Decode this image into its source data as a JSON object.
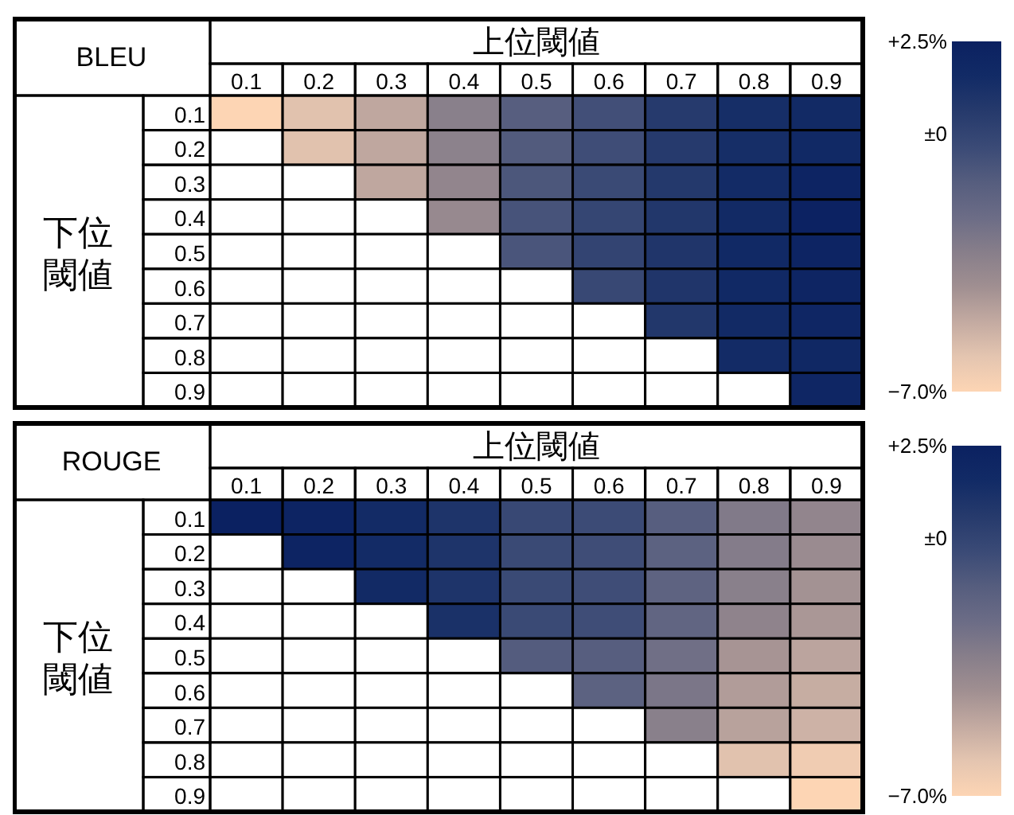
{
  "chart_data": [
    {
      "type": "heatmap",
      "title": "BLEU",
      "xlabel": "上位閾値",
      "ylabel": "下位閾値",
      "categories": [
        "0.1",
        "0.2",
        "0.3",
        "0.4",
        "0.5",
        "0.6",
        "0.7",
        "0.8",
        "0.9"
      ],
      "y_categories": [
        "0.1",
        "0.2",
        "0.3",
        "0.4",
        "0.5",
        "0.6",
        "0.7",
        "0.8",
        "0.9"
      ],
      "cells": [
        [
          -7.0,
          -6.0,
          -5.0,
          -3.3,
          -1.4,
          -0.6,
          0.6,
          1.4,
          1.7
        ],
        [
          null,
          -6.0,
          -5.0,
          -3.4,
          -1.2,
          -0.5,
          0.6,
          1.4,
          1.8
        ],
        [
          null,
          null,
          -5.0,
          -3.6,
          -1.0,
          -0.3,
          0.7,
          1.6,
          2.2
        ],
        [
          null,
          null,
          null,
          -3.8,
          -0.8,
          -0.1,
          0.8,
          1.7,
          2.4
        ],
        [
          null,
          null,
          null,
          null,
          -0.9,
          0.0,
          0.9,
          1.8,
          2.2
        ],
        [
          null,
          null,
          null,
          null,
          null,
          -0.2,
          0.9,
          1.8,
          2.1
        ],
        [
          null,
          null,
          null,
          null,
          null,
          null,
          0.8,
          1.7,
          2.0
        ],
        [
          null,
          null,
          null,
          null,
          null,
          null,
          null,
          1.6,
          1.9
        ],
        [
          null,
          null,
          null,
          null,
          null,
          null,
          null,
          null,
          2.0
        ]
      ],
      "clim": [
        -7.0,
        2.5
      ],
      "cticks": [
        {
          "value": 2.5,
          "label": "+2.5%"
        },
        {
          "value": 0,
          "label": "±0"
        },
        {
          "value": -7.0,
          "label": "−7.0%"
        }
      ]
    },
    {
      "type": "heatmap",
      "title": "ROUGE",
      "xlabel": "上位閾値",
      "ylabel": "下位閾値",
      "categories": [
        "0.1",
        "0.2",
        "0.3",
        "0.4",
        "0.5",
        "0.6",
        "0.7",
        "0.8",
        "0.9"
      ],
      "y_categories": [
        "0.1",
        "0.2",
        "0.3",
        "0.4",
        "0.5",
        "0.6",
        "0.7",
        "0.8",
        "0.9"
      ],
      "cells": [
        [
          2.5,
          2.2,
          1.6,
          1.0,
          -0.2,
          -0.4,
          -1.4,
          -3.0,
          -3.6
        ],
        [
          null,
          2.2,
          1.6,
          1.0,
          -0.3,
          -0.5,
          -1.6,
          -3.1,
          -3.9
        ],
        [
          null,
          null,
          1.7,
          1.0,
          -0.3,
          -0.5,
          -1.7,
          -3.3,
          -4.2
        ],
        [
          null,
          null,
          null,
          1.2,
          -0.3,
          -0.5,
          -1.8,
          -3.5,
          -4.4
        ],
        [
          null,
          null,
          null,
          null,
          -1.3,
          -1.4,
          -2.4,
          -4.3,
          -4.9
        ],
        [
          null,
          null,
          null,
          null,
          null,
          -1.6,
          -2.8,
          -4.6,
          -5.2
        ],
        [
          null,
          null,
          null,
          null,
          null,
          null,
          -3.3,
          -4.8,
          -5.4
        ],
        [
          null,
          null,
          null,
          null,
          null,
          null,
          null,
          -6.0,
          -6.5
        ],
        [
          null,
          null,
          null,
          null,
          null,
          null,
          null,
          null,
          -7.0
        ]
      ],
      "clim": [
        -7.0,
        2.5
      ],
      "cticks": [
        {
          "value": 2.5,
          "label": "+2.5%"
        },
        {
          "value": 0,
          "label": "±0"
        },
        {
          "value": -7.0,
          "label": "−7.0%"
        }
      ]
    }
  ]
}
